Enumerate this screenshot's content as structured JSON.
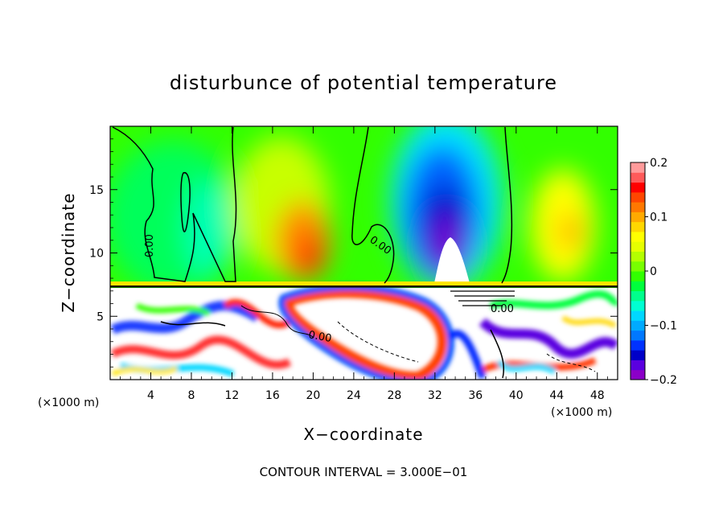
{
  "chart_data": {
    "type": "heatmap",
    "title": "disturbunce of potential temperature",
    "xlabel": "X−coordinate",
    "ylabel": "Z−coordinate",
    "x_unit_left": "(×1000 m)",
    "x_unit_right": "(×1000 m)",
    "footer": "CONTOUR INTERVAL = 3.000E−01",
    "xlim": [
      0,
      50
    ],
    "ylim": [
      0,
      20
    ],
    "x_ticks": [
      4,
      8,
      12,
      16,
      20,
      24,
      28,
      32,
      36,
      40,
      44,
      48
    ],
    "y_ticks": [
      5,
      10,
      15
    ],
    "colorbar": {
      "min": -0.2,
      "max": 0.2,
      "tick_values": [
        0.2,
        0.1,
        0,
        -0.1,
        -0.2
      ],
      "tick_labels": [
        "0.2",
        "0.1",
        "0",
        "−0.1",
        "−0.2"
      ],
      "colors": [
        "#8b00c8",
        "#5a00e0",
        "#0000c8",
        "#0032ff",
        "#0078ff",
        "#00aaff",
        "#00d7ff",
        "#00ffd2",
        "#00ff8c",
        "#00ff3c",
        "#32ff00",
        "#78ff00",
        "#b4ff00",
        "#e6ff00",
        "#ffff00",
        "#ffd700",
        "#ffaa00",
        "#ff7800",
        "#ff4600",
        "#ff0000",
        "#ff5a5a",
        "#ff9b9b"
      ]
    },
    "contour_labels": [
      "0.00",
      "0.00",
      "0.00",
      "0.00"
    ],
    "features": [
      {
        "kind": "anomaly",
        "x": 33,
        "z": 14,
        "value": -0.2
      },
      {
        "kind": "anomaly",
        "x": 33,
        "z": 10.5,
        "value": -0.3
      },
      {
        "kind": "anomaly",
        "x": 19,
        "z": 10,
        "value": 0.12
      },
      {
        "kind": "anomaly",
        "x": 21,
        "z": 8.5,
        "value": 0.12
      },
      {
        "kind": "anomaly",
        "x": 46,
        "z": 12,
        "value": 0.1
      },
      {
        "kind": "anomaly",
        "x": 14,
        "z": 16,
        "value": 0.05
      },
      {
        "kind": "anomaly",
        "x": 10,
        "z": 12,
        "value": -0.03
      },
      {
        "kind": "anomaly",
        "x": 23,
        "z": 3.5,
        "value": 0.5
      }
    ]
  }
}
